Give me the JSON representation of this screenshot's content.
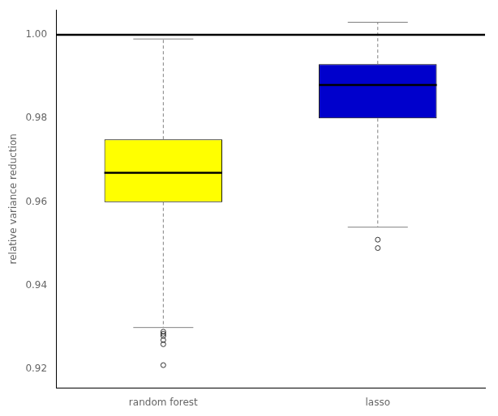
{
  "chart_data": {
    "type": "box",
    "categories": [
      "random forest",
      "lasso"
    ],
    "colors": [
      "#FFFF00",
      "#0000CC"
    ],
    "boxes": [
      {
        "q1": 0.96,
        "median": 0.967,
        "q3": 0.975,
        "whisker_low": 0.93,
        "whisker_high": 0.999,
        "outliers": [
          0.929,
          0.9285,
          0.928,
          0.927,
          0.926,
          0.921
        ]
      },
      {
        "q1": 0.98,
        "median": 0.988,
        "q3": 0.993,
        "whisker_low": 0.954,
        "whisker_high": 1.003,
        "outliers": [
          0.951,
          0.949
        ]
      }
    ],
    "hline": 1.0,
    "ylabel": "relative variance reduction",
    "ylim": [
      0.9155,
      1.006
    ],
    "yticks": [
      0.92,
      0.94,
      0.96,
      0.98,
      {
        "value": 1.0,
        "label": "1.00"
      }
    ],
    "grid": false
  }
}
